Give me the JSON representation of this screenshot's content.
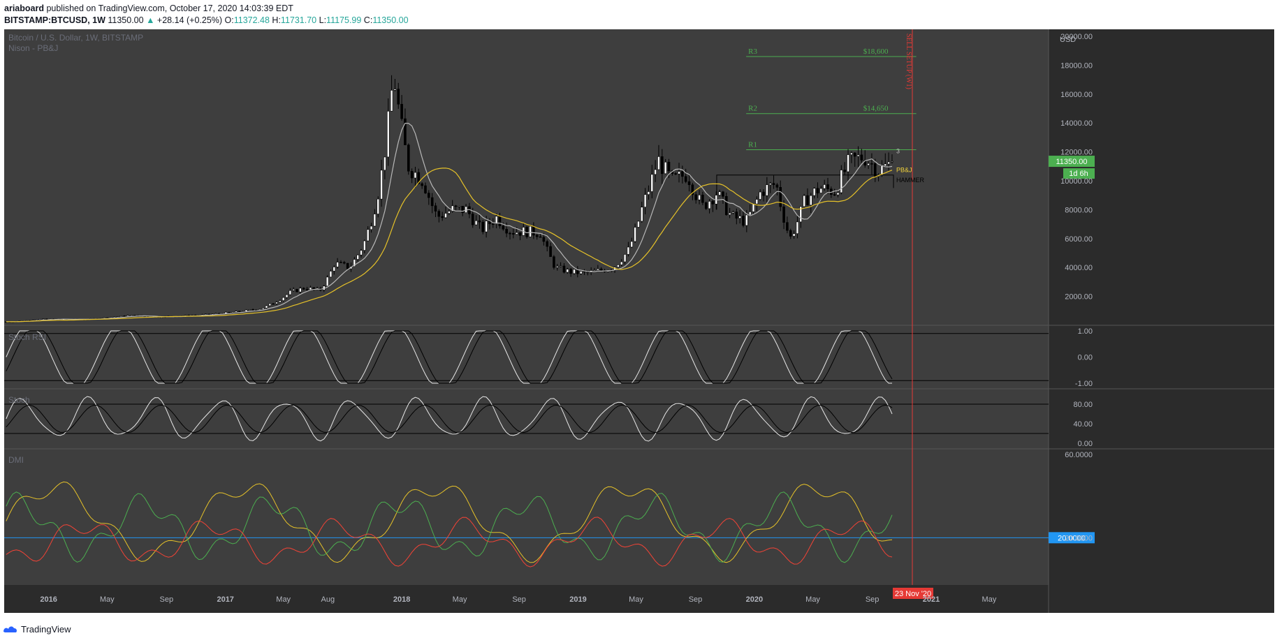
{
  "header": {
    "author": "ariaboard",
    "published": " published on TradingView.com, October 17, 2020 14:03:39 EDT",
    "symbol": "BITSTAMP:BTCUSD, 1W",
    "last": " 11350.00 ",
    "change_arrow": "▲",
    "change": "+28.14 (+0.25%)",
    "o_label": " O:",
    "o": "11372.48",
    "h_label": " H:",
    "h": "11731.70",
    "l_label": " L:",
    "l": "11175.99",
    "c_label": " C:",
    "c": "11350.00"
  },
  "footer": {
    "brand": "TradingView"
  },
  "colors": {
    "bg": "#3e3e3e",
    "axis": "#2b2b2b",
    "grid": "#4a4a4a",
    "candle": "#000000",
    "ma_fast": "#b8b8b8",
    "ma_slow": "#e6c229",
    "level": "#4caf50",
    "sell": "#e53935",
    "price_tag": "#4caf50",
    "osc_k": "#e8e8e8",
    "osc_d": "#000000",
    "dmi_plus": "#4caf50",
    "dmi_minus": "#f44336",
    "adx": "#e6c229",
    "adx_ref": "#2196f3"
  },
  "chart_data": {
    "type": "candlestick",
    "title": "Bitcoin / U.S. Dollar, 1W, BITSTAMP",
    "subtitle": "Nison - PB&J",
    "currency": "USD",
    "x_ticks": [
      "2016",
      "May",
      "Sep",
      "2017",
      "May",
      "Aug",
      "2018",
      "May",
      "Sep",
      "2019",
      "May",
      "Sep",
      "2020",
      "May",
      "Sep",
      "2021",
      "May"
    ],
    "y_ticks": [
      "2000.00",
      "4000.00",
      "6000.00",
      "8000.00",
      "10000.00",
      "12000.00",
      "14000.00",
      "16000.00",
      "18000.00",
      "20000.00"
    ],
    "ylim": [
      0,
      20000
    ],
    "last_price": "11350.00",
    "countdown": "1d 6h",
    "date_tag": "23 Nov '20",
    "levels": [
      {
        "name": "R3",
        "price_label": "$18,600",
        "value": 18600
      },
      {
        "name": "R2",
        "price_label": "$14,650",
        "value": 14650
      },
      {
        "name": "R1",
        "price_label": "",
        "value": 12150
      }
    ],
    "annotations": {
      "pbj": "PB&J",
      "hammer": "HAMMER",
      "count": "3",
      "sell_setup": "SELL SETUP (W1)"
    },
    "resistance_box": {
      "from": "Oct 2019",
      "to": "Oct 2020",
      "value": 10400
    },
    "price_anchors": [
      [
        "2015-10",
        250
      ],
      [
        "2015-12",
        420
      ],
      [
        "2016-03",
        410
      ],
      [
        "2016-06",
        680
      ],
      [
        "2016-08",
        580
      ],
      [
        "2016-11",
        720
      ],
      [
        "2017-01",
        900
      ],
      [
        "2017-03",
        1150
      ],
      [
        "2017-05",
        2300
      ],
      [
        "2017-06",
        2600
      ],
      [
        "2017-07",
        2400
      ],
      [
        "2017-08",
        4300
      ],
      [
        "2017-09",
        4000
      ],
      [
        "2017-10",
        5700
      ],
      [
        "2017-11",
        9500
      ],
      [
        "2017-12",
        17500
      ],
      [
        "2018-01",
        11000
      ],
      [
        "2018-02",
        10000
      ],
      [
        "2018-03",
        7500
      ],
      [
        "2018-04",
        8000
      ],
      [
        "2018-05",
        8000
      ],
      [
        "2018-06",
        6600
      ],
      [
        "2018-07",
        7500
      ],
      [
        "2018-08",
        6500
      ],
      [
        "2018-09",
        6500
      ],
      [
        "2018-10",
        6400
      ],
      [
        "2018-11",
        4000
      ],
      [
        "2018-12",
        3700
      ],
      [
        "2019-01",
        3600
      ],
      [
        "2019-02",
        3800
      ],
      [
        "2019-03",
        4000
      ],
      [
        "2019-04",
        5200
      ],
      [
        "2019-05",
        8300
      ],
      [
        "2019-06",
        11500
      ],
      [
        "2019-07",
        10000
      ],
      [
        "2019-08",
        10500
      ],
      [
        "2019-09",
        8200
      ],
      [
        "2019-10",
        9200
      ],
      [
        "2019-11",
        7500
      ],
      [
        "2019-12",
        7200
      ],
      [
        "2020-01",
        9300
      ],
      [
        "2020-02",
        9800
      ],
      [
        "2020-03",
        6000
      ],
      [
        "2020-04",
        8700
      ],
      [
        "2020-05",
        9500
      ],
      [
        "2020-06",
        9300
      ],
      [
        "2020-07",
        11300
      ],
      [
        "2020-08",
        11700
      ],
      [
        "2020-09",
        10700
      ],
      [
        "2020-10",
        11350
      ]
    ],
    "panes": [
      {
        "name": "Stoch RSI",
        "y_ticks": [
          "1.00",
          "0.00",
          "-1.00"
        ],
        "levels": [
          0.9,
          -0.9
        ]
      },
      {
        "name": "Stoch",
        "y_ticks": [
          "80.00",
          "40.00",
          "0.00"
        ],
        "levels": [
          80,
          20
        ]
      },
      {
        "name": "DMI",
        "y_ticks": [
          "60.0000",
          "20.0000"
        ],
        "levels": [
          20
        ]
      }
    ]
  }
}
